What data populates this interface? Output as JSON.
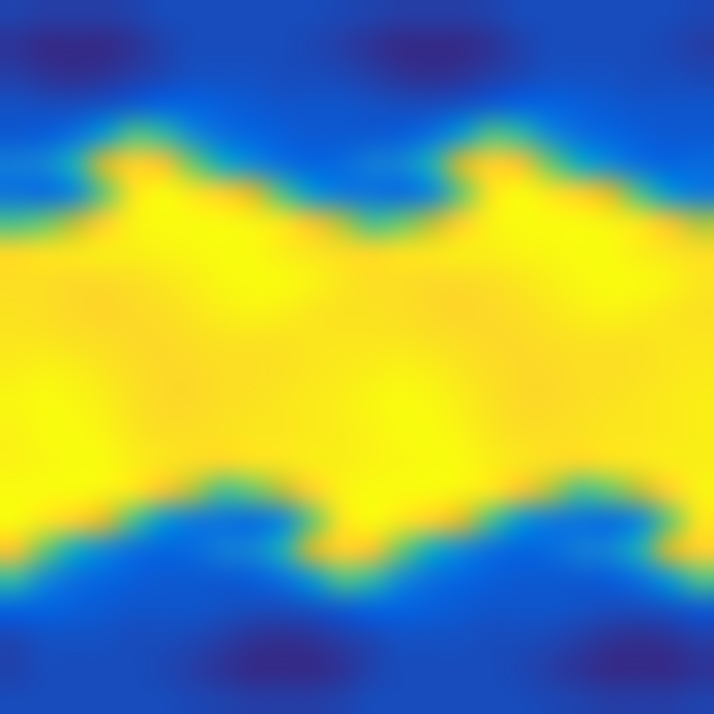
{
  "chart_data": {
    "type": "heatmap",
    "tick_labels": false,
    "cells": [
      [
        0.08,
        0.07,
        0.07,
        0.07,
        0.08,
        0.1,
        0.1,
        0.1,
        0.1,
        0.1,
        0.1,
        0.09,
        0.08,
        0.07,
        0.07,
        0.07,
        0.08,
        0.1,
        0.1,
        0.1,
        0.1,
        0.1,
        0.1,
        0.09
      ],
      [
        0.05,
        0.03,
        0.03,
        0.03,
        0.05,
        0.08,
        0.1,
        0.1,
        0.1,
        0.1,
        0.09,
        0.07,
        0.05,
        0.03,
        0.03,
        0.03,
        0.05,
        0.08,
        0.1,
        0.1,
        0.1,
        0.1,
        0.09,
        0.07
      ],
      [
        0.07,
        0.05,
        0.04,
        0.05,
        0.07,
        0.09,
        0.11,
        0.11,
        0.11,
        0.1,
        0.1,
        0.09,
        0.07,
        0.05,
        0.04,
        0.05,
        0.07,
        0.09,
        0.11,
        0.11,
        0.11,
        0.1,
        0.1,
        0.09
      ],
      [
        0.11,
        0.1,
        0.1,
        0.11,
        0.13,
        0.15,
        0.15,
        0.14,
        0.13,
        0.12,
        0.12,
        0.12,
        0.11,
        0.1,
        0.1,
        0.11,
        0.13,
        0.15,
        0.15,
        0.14,
        0.13,
        0.12,
        0.12,
        0.12
      ],
      [
        0.13,
        0.14,
        0.2,
        0.35,
        0.55,
        0.5,
        0.3,
        0.2,
        0.16,
        0.14,
        0.13,
        0.13,
        0.13,
        0.14,
        0.2,
        0.35,
        0.55,
        0.5,
        0.3,
        0.2,
        0.16,
        0.14,
        0.13,
        0.13
      ],
      [
        0.25,
        0.28,
        0.45,
        0.75,
        0.9,
        0.85,
        0.6,
        0.42,
        0.3,
        0.2,
        0.16,
        0.18,
        0.25,
        0.28,
        0.45,
        0.75,
        0.9,
        0.85,
        0.6,
        0.42,
        0.3,
        0.2,
        0.16,
        0.18
      ],
      [
        0.22,
        0.2,
        0.3,
        0.6,
        0.95,
        1,
        0.95,
        0.9,
        0.78,
        0.55,
        0.35,
        0.25,
        0.22,
        0.2,
        0.3,
        0.6,
        0.95,
        1,
        0.95,
        0.9,
        0.78,
        0.55,
        0.35,
        0.25
      ],
      [
        0.55,
        0.6,
        0.72,
        0.9,
        0.98,
        1,
        1,
        1,
        0.98,
        0.95,
        0.85,
        0.7,
        0.55,
        0.6,
        0.72,
        0.9,
        0.98,
        1,
        1,
        1,
        0.98,
        0.95,
        0.85,
        0.7
      ],
      [
        0.92,
        0.94,
        0.95,
        0.97,
        0.97,
        0.98,
        0.99,
        1,
        1,
        0.97,
        0.95,
        0.93,
        0.92,
        0.94,
        0.95,
        0.97,
        0.97,
        0.98,
        0.99,
        1,
        1,
        0.97,
        0.95,
        0.93
      ],
      [
        0.93,
        0.93,
        0.92,
        0.92,
        0.93,
        0.95,
        0.97,
        0.99,
        1,
        1,
        0.98,
        0.95,
        0.93,
        0.93,
        0.92,
        0.92,
        0.93,
        0.95,
        0.97,
        0.99,
        1,
        1,
        0.98,
        0.95
      ],
      [
        0.94,
        0.93,
        0.92,
        0.91,
        0.92,
        0.93,
        0.95,
        0.97,
        0.98,
        0.97,
        0.95,
        0.94,
        0.94,
        0.93,
        0.92,
        0.91,
        0.92,
        0.93,
        0.95,
        0.97,
        0.98,
        0.97,
        0.95,
        0.94
      ],
      [
        0.95,
        0.95,
        0.94,
        0.93,
        0.92,
        0.92,
        0.93,
        0.94,
        0.94,
        0.94,
        0.95,
        0.95,
        0.95,
        0.95,
        0.94,
        0.93,
        0.92,
        0.92,
        0.93,
        0.94,
        0.94,
        0.94,
        0.95,
        0.95
      ],
      [
        0.97,
        0.98,
        0.97,
        0.95,
        0.93,
        0.92,
        0.92,
        0.93,
        0.93,
        0.94,
        0.95,
        0.96,
        0.97,
        0.98,
        0.97,
        0.95,
        0.93,
        0.92,
        0.92,
        0.93,
        0.93,
        0.94,
        0.95,
        0.96
      ],
      [
        0.99,
        1,
        0.99,
        0.97,
        0.94,
        0.92,
        0.92,
        0.93,
        0.94,
        0.95,
        0.96,
        0.97,
        0.99,
        1,
        0.99,
        0.97,
        0.94,
        0.92,
        0.92,
        0.93,
        0.94,
        0.95,
        0.96,
        0.97
      ],
      [
        0.98,
        1,
        1,
        0.98,
        0.95,
        0.93,
        0.93,
        0.94,
        0.95,
        0.95,
        0.96,
        0.97,
        0.98,
        1,
        1,
        0.98,
        0.95,
        0.93,
        0.93,
        0.94,
        0.95,
        0.95,
        0.96,
        0.97
      ],
      [
        0.98,
        0.99,
        1,
        1,
        0.97,
        0.95,
        0.93,
        0.92,
        0.94,
        0.95,
        0.97,
        0.97,
        0.98,
        0.99,
        1,
        1,
        0.97,
        0.95,
        0.93,
        0.92,
        0.94,
        0.95,
        0.97,
        0.97
      ],
      [
        1,
        1,
        1,
        0.98,
        0.95,
        0.85,
        0.7,
        0.55,
        0.6,
        0.72,
        0.9,
        0.98,
        1,
        1,
        1,
        0.98,
        0.95,
        0.85,
        0.7,
        0.55,
        0.6,
        0.72,
        0.9,
        0.98
      ],
      [
        1,
        0.95,
        0.9,
        0.78,
        0.55,
        0.35,
        0.25,
        0.22,
        0.2,
        0.3,
        0.6,
        0.95,
        1,
        0.95,
        0.9,
        0.78,
        0.55,
        0.35,
        0.25,
        0.22,
        0.2,
        0.3,
        0.6,
        0.95
      ],
      [
        0.85,
        0.6,
        0.42,
        0.3,
        0.2,
        0.16,
        0.18,
        0.25,
        0.28,
        0.45,
        0.75,
        0.9,
        0.85,
        0.6,
        0.42,
        0.3,
        0.2,
        0.16,
        0.18,
        0.25,
        0.28,
        0.45,
        0.75,
        0.9
      ],
      [
        0.5,
        0.3,
        0.2,
        0.16,
        0.14,
        0.13,
        0.13,
        0.13,
        0.14,
        0.2,
        0.35,
        0.55,
        0.5,
        0.3,
        0.2,
        0.16,
        0.14,
        0.13,
        0.13,
        0.13,
        0.14,
        0.2,
        0.35,
        0.55
      ],
      [
        0.15,
        0.15,
        0.14,
        0.13,
        0.12,
        0.12,
        0.12,
        0.11,
        0.1,
        0.1,
        0.11,
        0.13,
        0.15,
        0.15,
        0.14,
        0.13,
        0.12,
        0.12,
        0.12,
        0.11,
        0.1,
        0.1,
        0.11,
        0.13
      ],
      [
        0.09,
        0.11,
        0.11,
        0.11,
        0.1,
        0.1,
        0.09,
        0.07,
        0.05,
        0.04,
        0.05,
        0.07,
        0.09,
        0.11,
        0.11,
        0.11,
        0.1,
        0.1,
        0.09,
        0.07,
        0.05,
        0.04,
        0.05,
        0.07
      ],
      [
        0.08,
        0.1,
        0.1,
        0.1,
        0.1,
        0.09,
        0.07,
        0.05,
        0.03,
        0.03,
        0.03,
        0.05,
        0.08,
        0.1,
        0.1,
        0.1,
        0.1,
        0.09,
        0.07,
        0.05,
        0.03,
        0.03,
        0.03,
        0.05
      ],
      [
        0.1,
        0.1,
        0.1,
        0.1,
        0.1,
        0.1,
        0.09,
        0.08,
        0.07,
        0.07,
        0.07,
        0.08,
        0.1,
        0.1,
        0.1,
        0.1,
        0.1,
        0.1,
        0.09,
        0.08,
        0.07,
        0.07,
        0.07,
        0.08
      ]
    ]
  }
}
